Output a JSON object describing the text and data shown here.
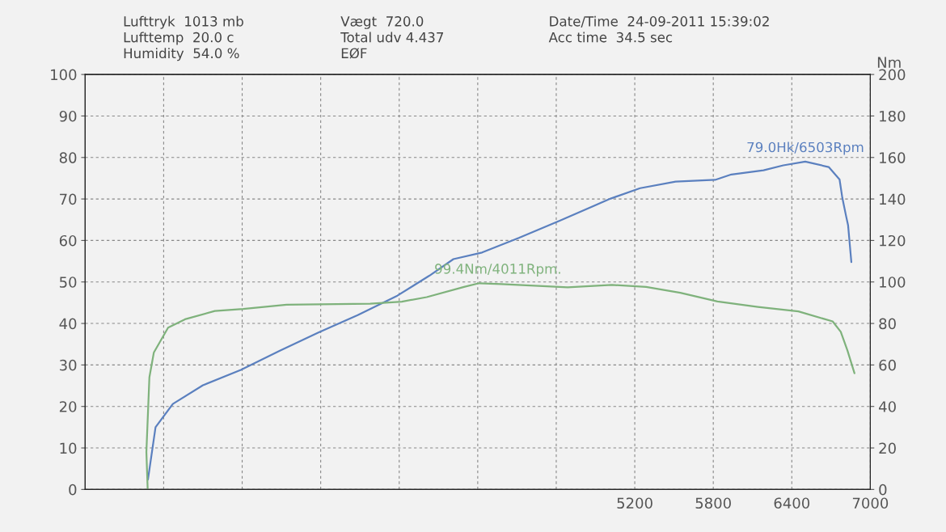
{
  "chart_data": {
    "type": "line",
    "x": [
      1478,
      1468,
      1491,
      1525,
      1634,
      1763,
      1991,
      2208,
      2539,
      3178,
      3420,
      3610,
      3895,
      4011,
      4181,
      4687,
      5025,
      5287,
      5548,
      5832,
      6141,
      6450,
      6712,
      6774,
      6825,
      6879
    ],
    "series": [
      {
        "color": "#5b80bf",
        "x": [
          1480,
          1538,
          1670,
          1900,
          2190,
          2485,
          2783,
          3083,
          3386,
          3630,
          3814,
          4033,
          4314,
          4630,
          5016,
          5241,
          5512,
          5814,
          5938,
          6184,
          6335,
          6503,
          6682,
          6765,
          6786,
          6814,
          6830,
          6855
        ],
        "values": [
          2.4,
          15.0,
          20.6,
          25.1,
          28.8,
          33.4,
          37.8,
          42.0,
          46.7,
          51.5,
          55.5,
          57.1,
          60.6,
          64.8,
          70.1,
          72.6,
          74.2,
          74.6,
          75.9,
          76.9,
          78.1,
          79.0,
          77.7,
          74.7,
          70.3,
          66.0,
          63.7,
          54.8
        ]
      },
      {
        "color": "#7fb27c",
        "axis": "y2",
        "values": [
          0,
          18,
          54,
          66,
          78,
          82,
          86,
          87,
          89,
          89.5,
          90.5,
          92.7,
          97.6,
          99.4,
          99,
          97.4,
          98.6,
          97.6,
          94.8,
          90.6,
          88,
          85.8,
          81,
          76,
          67,
          56
        ]
      }
    ],
    "xlim": [
      1000,
      7000
    ],
    "xticks": [
      {
        "value": 1000,
        "label": null
      },
      {
        "value": 1600,
        "label": null
      },
      {
        "value": 2200,
        "label": null
      },
      {
        "value": 2800,
        "label": null
      },
      {
        "value": 3400,
        "label": null
      },
      {
        "value": 4000,
        "label": null
      },
      {
        "value": 4600,
        "label": null
      },
      5200,
      5800,
      6400,
      7000
    ],
    "ylim": [
      0,
      100
    ],
    "yticks": [
      0,
      10,
      20,
      30,
      40,
      50,
      60,
      70,
      80,
      90,
      100
    ],
    "y2lim": [
      0,
      200
    ],
    "y2ticks": [
      0,
      20,
      40,
      60,
      80,
      100,
      120,
      140,
      160,
      180,
      200
    ],
    "y2label": "Nm",
    "grid": true,
    "legend": false,
    "line_style": "solid",
    "marker": "none",
    "annotations": [
      "Lufttryk  1013 mb",
      "Lufttemp  20.0 c",
      "Humidity  54.0 %",
      "Vægt  720.0",
      "Total udv 4.437",
      "EØF",
      "Date/Time  24-09-2011 15:39:02",
      "Acc time  34.5 sec",
      {
        "text": "79.0Hk/6503Rpm",
        "x": 6503,
        "y": 79.0
      },
      "99.4Nm/4011Rpm."
    ]
  }
}
